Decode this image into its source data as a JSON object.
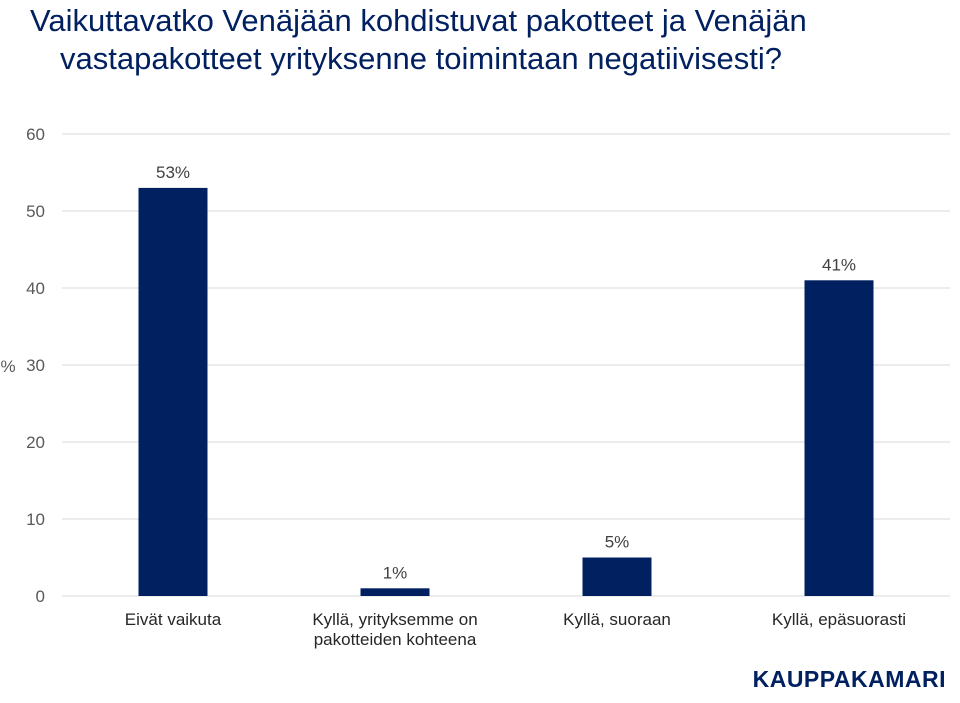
{
  "title": {
    "line1": "Vaikuttavatko Venäjään kohdistuvat pakotteet ja Venäjän",
    "line2": "vastapakotteet yrityksenne toimintaan negatiivisesti?"
  },
  "logo": "KAUPPAKAMARI",
  "colors": {
    "bar": "#002060",
    "title": "#002060",
    "grid": "#d9d9d9"
  },
  "chart_data": {
    "type": "bar",
    "categories": [
      [
        "Eivät vaikuta"
      ],
      [
        "Kyllä, yrityksemme on",
        "pakotteiden kohteena"
      ],
      [
        "Kyllä, suoraan"
      ],
      [
        "Kyllä, epäsuorasti"
      ]
    ],
    "values": [
      53,
      1,
      5,
      41
    ],
    "data_labels": [
      "53%",
      "1%",
      "5%",
      "41%"
    ],
    "ylabel": "%",
    "ylim": [
      0,
      60
    ],
    "yticks": [
      "0",
      "10",
      "20",
      "30",
      "40",
      "50",
      "60"
    ],
    "grid": true
  }
}
